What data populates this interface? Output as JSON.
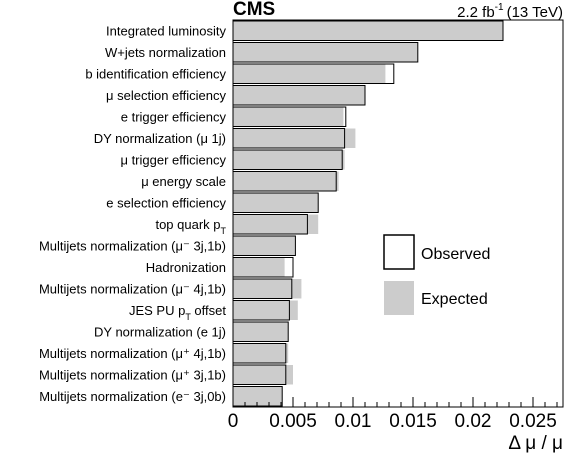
{
  "header": {
    "experiment": "CMS",
    "luminosity": "2.2 fb",
    "lumi_exponent": "-1",
    "energy": "(13 TeV)"
  },
  "chart_data": {
    "type": "bar",
    "orientation": "horizontal",
    "title": "",
    "xlabel": "Δ μ / μ",
    "ylabel": "",
    "xlim": [
      0,
      0.0275
    ],
    "xticks": [
      0,
      0.005,
      0.01,
      0.015,
      0.02,
      0.025
    ],
    "xtick_labels": [
      "0",
      "0.005",
      "0.01",
      "0.015",
      "0.02",
      "0.025"
    ],
    "legend_position": "center-right",
    "categories": [
      {
        "label": "Integrated luminosity",
        "sub": ""
      },
      {
        "label": "W+jets normalization",
        "sub": ""
      },
      {
        "label": "b identification efficiency",
        "sub": ""
      },
      {
        "label": "μ selection efficiency",
        "sub": ""
      },
      {
        "label": "e trigger efficiency",
        "sub": ""
      },
      {
        "label": "DY normalization (μ 1j)",
        "sub": ""
      },
      {
        "label": "μ trigger efficiency",
        "sub": ""
      },
      {
        "label": "μ energy scale",
        "sub": ""
      },
      {
        "label": "e selection efficiency",
        "sub": ""
      },
      {
        "label": "top quark p",
        "sub": "T"
      },
      {
        "label": "Multijets normalization (μ⁻ 3j,1b)",
        "sub": ""
      },
      {
        "label": "Hadronization",
        "sub": ""
      },
      {
        "label": "Multijets normalization (μ⁻ 4j,1b)",
        "sub": ""
      },
      {
        "label": "JES PU p",
        "sub": "T",
        "after": " offset"
      },
      {
        "label": "DY normalization (e 1j)",
        "sub": ""
      },
      {
        "label": "Multijets normalization (μ⁺ 4j,1b)",
        "sub": ""
      },
      {
        "label": "Multijets normalization (μ⁺ 3j,1b)",
        "sub": ""
      },
      {
        "label": "Multijets normalization (e⁻ 3j,0b)",
        "sub": ""
      }
    ],
    "series": [
      {
        "name": "Observed",
        "style": "outline",
        "color": "#000000",
        "values": [
          0.0225,
          0.0154,
          0.0134,
          0.011,
          0.0094,
          0.0093,
          0.0091,
          0.0086,
          0.0071,
          0.0062,
          0.0052,
          0.005,
          0.0049,
          0.0047,
          0.0046,
          0.0044,
          0.0044,
          0.0041
        ]
      },
      {
        "name": "Expected",
        "style": "fill",
        "color": "#cccccc",
        "values": [
          0.0225,
          0.0154,
          0.0127,
          0.011,
          0.0092,
          0.0102,
          0.0093,
          0.0088,
          0.0071,
          0.0071,
          0.0052,
          0.0043,
          0.0057,
          0.0054,
          0.0046,
          0.0046,
          0.005,
          0.0041
        ]
      }
    ]
  }
}
